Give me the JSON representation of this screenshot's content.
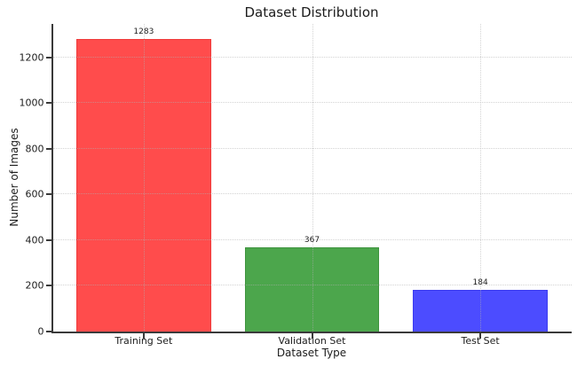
{
  "chart_data": {
    "type": "bar",
    "title": "Dataset Distribution",
    "xlabel": "Dataset Type",
    "ylabel": "Number of Images",
    "categories": [
      "Training Set",
      "Validation Set",
      "Test Set"
    ],
    "values": [
      1283,
      367,
      184
    ],
    "value_labels": [
      "1283",
      "367",
      "184"
    ],
    "bar_fill_colors": [
      "#ff4c4c",
      "#4ca64c",
      "#4c4cff"
    ],
    "bar_edge_colors": [
      "#ef3b3b",
      "#3f943f",
      "#3b3bef"
    ],
    "ylim": [
      0,
      1347
    ],
    "yticks": [
      0,
      200,
      400,
      600,
      800,
      1000,
      1200
    ],
    "bar_width_fraction": 0.8,
    "grid": {
      "visible": true,
      "style": "dotted",
      "color": "#b0b0b0",
      "axes": "both"
    },
    "legend": "none",
    "background_color": "#ffffff",
    "spine_color": "#3a3a3a",
    "text_color": "#1c1c1c"
  }
}
